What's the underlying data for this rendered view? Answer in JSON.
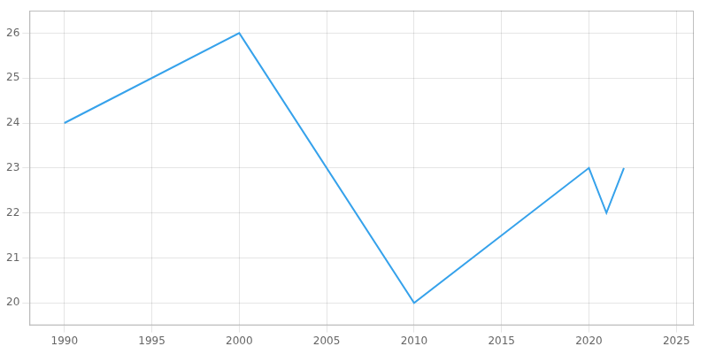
{
  "chart_data": {
    "type": "line",
    "x": [
      1990,
      2000,
      2010,
      2020,
      2021,
      2022
    ],
    "values": [
      24,
      26,
      20,
      23,
      22,
      23
    ],
    "xlim": [
      1988,
      2026
    ],
    "ylim": [
      19.5,
      26.5
    ],
    "xticks": [
      1990,
      1995,
      2000,
      2005,
      2010,
      2015,
      2020,
      2025
    ],
    "yticks": [
      20,
      21,
      22,
      23,
      24,
      25,
      26
    ],
    "grid": true
  }
}
